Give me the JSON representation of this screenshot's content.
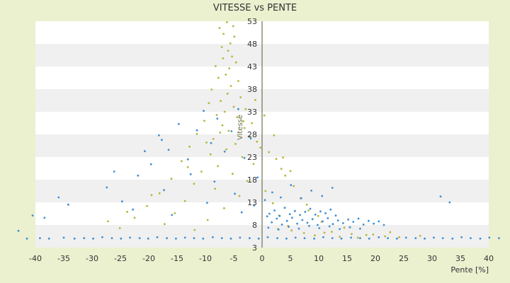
{
  "chart_data": {
    "type": "scatter",
    "title": "VITESSE vs PENTE",
    "xlabel": "Pente [%]",
    "ylabel": "Vitesse",
    "xlim": [
      -40,
      40
    ],
    "ylim": [
      3,
      53
    ],
    "x_ticks": [
      "-40",
      "-35",
      "-30",
      "-25",
      "-20",
      "-15",
      "-10",
      "-5",
      "0",
      "5",
      "10",
      "15",
      "20",
      "25",
      "30",
      "35",
      "40"
    ],
    "y_ticks": [
      "3",
      "8",
      "13",
      "18",
      "23",
      "28",
      "33",
      "38",
      "43",
      "48",
      "53"
    ],
    "grid": "horizontal bands",
    "legend": "none",
    "colors": {
      "series_blue": "#3d8fd6",
      "series_yellow": "#b8b43a",
      "background": "#ebf0cf",
      "band_light": "#ffffff",
      "band_dark": "#f0f0f0",
      "axis": "#555533"
    },
    "series": [
      {
        "color": "#b8b43a",
        "points": [
          [
            -6.2,
            52.8
          ],
          [
            -5.1,
            51.9
          ],
          [
            -7.5,
            51.5
          ],
          [
            -6.8,
            50.2
          ],
          [
            -4.9,
            49.6
          ],
          [
            -5.6,
            48.1
          ],
          [
            -7.1,
            47.3
          ],
          [
            -6.0,
            46.5
          ],
          [
            -5.3,
            45.2
          ],
          [
            -6.9,
            44.8
          ],
          [
            -4.6,
            43.9
          ],
          [
            -8.2,
            43.1
          ],
          [
            -5.8,
            42.6
          ],
          [
            -6.4,
            41.2
          ],
          [
            -7.7,
            40.5
          ],
          [
            -4.2,
            39.8
          ],
          [
            -5.5,
            38.7
          ],
          [
            -8.9,
            37.9
          ],
          [
            -6.1,
            37.0
          ],
          [
            -3.8,
            36.2
          ],
          [
            -7.3,
            35.4
          ],
          [
            -9.4,
            34.9
          ],
          [
            -5.0,
            34.1
          ],
          [
            -2.9,
            33.6
          ],
          [
            -6.6,
            33.0
          ],
          [
            -8.0,
            32.3
          ],
          [
            -4.4,
            31.8
          ],
          [
            -10.2,
            31.0
          ],
          [
            -1.8,
            30.5
          ],
          [
            -7.0,
            30.0
          ],
          [
            -3.1,
            29.4
          ],
          [
            -5.9,
            28.8
          ],
          [
            -11.5,
            28.1
          ],
          [
            -2.2,
            27.5
          ],
          [
            -8.6,
            27.0
          ],
          [
            -0.9,
            26.4
          ],
          [
            -4.7,
            25.9
          ],
          [
            -12.8,
            25.3
          ],
          [
            -6.3,
            24.7
          ],
          [
            1.2,
            24.1
          ],
          [
            -9.1,
            23.6
          ],
          [
            -3.5,
            23.0
          ],
          [
            2.5,
            22.6
          ],
          [
            -14.2,
            22.1
          ],
          [
            -1.5,
            21.5
          ],
          [
            -7.8,
            21.0
          ],
          [
            3.4,
            20.4
          ],
          [
            -10.7,
            19.8
          ],
          [
            -5.2,
            19.3
          ],
          [
            4.1,
            18.9
          ],
          [
            -16.0,
            18.2
          ],
          [
            -2.6,
            17.7
          ],
          [
            -12.0,
            17.1
          ],
          [
            5.6,
            16.6
          ],
          [
            -8.3,
            16.0
          ],
          [
            0.6,
            15.5
          ],
          [
            -18.1,
            15.0
          ],
          [
            -4.0,
            14.4
          ],
          [
            6.8,
            13.9
          ],
          [
            -13.6,
            13.3
          ],
          [
            1.9,
            12.8
          ],
          [
            -20.3,
            12.2
          ],
          [
            -6.7,
            11.7
          ],
          [
            8.2,
            11.2
          ],
          [
            -15.4,
            10.6
          ],
          [
            3.0,
            10.1
          ],
          [
            -22.5,
            9.6
          ],
          [
            -9.6,
            9.1
          ],
          [
            10.5,
            8.7
          ],
          [
            -17.2,
            8.2
          ],
          [
            4.6,
            7.8
          ],
          [
            -25.1,
            7.3
          ],
          [
            -11.9,
            6.9
          ],
          [
            12.3,
            6.5
          ],
          [
            7.4,
            6.2
          ],
          [
            15.8,
            6.0
          ],
          [
            18.4,
            5.8
          ],
          [
            21.7,
            5.5
          ],
          [
            24.2,
            5.3
          ],
          [
            9.3,
            5.7
          ],
          [
            13.7,
            5.4
          ],
          [
            16.9,
            5.2
          ],
          [
            2.8,
            7.1
          ],
          [
            5.2,
            6.8
          ],
          [
            11.0,
            6.3
          ],
          [
            19.6,
            5.9
          ],
          [
            -1.2,
            35.6
          ],
          [
            0.4,
            32.2
          ],
          [
            -3.3,
            30.9
          ],
          [
            -7.4,
            28.4
          ],
          [
            2.1,
            27.8
          ],
          [
            -9.8,
            26.2
          ],
          [
            -0.3,
            25.1
          ],
          [
            3.7,
            22.9
          ],
          [
            -13.1,
            20.8
          ],
          [
            5.0,
            19.9
          ],
          [
            -19.5,
            14.6
          ],
          [
            7.9,
            12.5
          ],
          [
            -23.8,
            10.9
          ],
          [
            9.9,
            10.0
          ],
          [
            -27.2,
            8.8
          ],
          [
            14.5,
            7.4
          ],
          [
            22.6,
            6.4
          ],
          [
            27.9,
            5.6
          ]
        ]
      },
      {
        "color": "#3d8fd6",
        "points": [
          [
            -41.5,
            5.0
          ],
          [
            -39.2,
            5.1
          ],
          [
            -37.6,
            5.0
          ],
          [
            -35.0,
            5.2
          ],
          [
            -33.1,
            5.0
          ],
          [
            -31.4,
            5.1
          ],
          [
            -29.8,
            5.0
          ],
          [
            -28.2,
            5.3
          ],
          [
            -26.5,
            5.1
          ],
          [
            -24.9,
            5.0
          ],
          [
            -23.3,
            5.2
          ],
          [
            -21.6,
            5.1
          ],
          [
            -20.1,
            5.0
          ],
          [
            -18.5,
            5.3
          ],
          [
            -16.8,
            5.1
          ],
          [
            -15.2,
            5.0
          ],
          [
            -13.6,
            5.2
          ],
          [
            -12.0,
            5.1
          ],
          [
            -10.4,
            5.0
          ],
          [
            -8.7,
            5.3
          ],
          [
            -7.1,
            5.1
          ],
          [
            -5.5,
            5.0
          ],
          [
            -3.9,
            5.2
          ],
          [
            -2.2,
            5.1
          ],
          [
            -0.6,
            5.0
          ],
          [
            1.0,
            5.3
          ],
          [
            2.7,
            5.1
          ],
          [
            4.3,
            5.0
          ],
          [
            5.9,
            5.2
          ],
          [
            7.5,
            5.1
          ],
          [
            9.2,
            5.0
          ],
          [
            10.8,
            5.3
          ],
          [
            12.4,
            5.1
          ],
          [
            14.0,
            5.0
          ],
          [
            15.7,
            5.2
          ],
          [
            17.3,
            5.1
          ],
          [
            18.9,
            5.0
          ],
          [
            20.6,
            5.3
          ],
          [
            22.2,
            5.1
          ],
          [
            23.8,
            5.0
          ],
          [
            25.4,
            5.2
          ],
          [
            27.1,
            5.1
          ],
          [
            28.7,
            5.0
          ],
          [
            30.3,
            5.2
          ],
          [
            31.9,
            5.1
          ],
          [
            33.6,
            5.0
          ],
          [
            35.2,
            5.3
          ],
          [
            36.8,
            5.1
          ],
          [
            38.5,
            5.0
          ],
          [
            40.1,
            5.2
          ],
          [
            41.8,
            5.1
          ],
          [
            -38.4,
            9.6
          ],
          [
            -35.9,
            14.1
          ],
          [
            -27.4,
            16.3
          ],
          [
            -24.7,
            13.2
          ],
          [
            -21.9,
            18.9
          ],
          [
            -19.6,
            21.4
          ],
          [
            -18.2,
            27.8
          ],
          [
            -16.5,
            24.6
          ],
          [
            -14.7,
            30.3
          ],
          [
            -13.1,
            22.5
          ],
          [
            -11.5,
            28.9
          ],
          [
            -10.3,
            33.2
          ],
          [
            -9.0,
            26.1
          ],
          [
            -7.9,
            31.5
          ],
          [
            -6.6,
            24.2
          ],
          [
            -5.4,
            28.7
          ],
          [
            -4.2,
            33.6
          ],
          [
            -3.1,
            22.8
          ],
          [
            -2.0,
            27.1
          ],
          [
            -0.8,
            18.5
          ],
          [
            -22.8,
            11.4
          ],
          [
            -17.3,
            15.7
          ],
          [
            -12.6,
            19.2
          ],
          [
            -8.4,
            17.6
          ],
          [
            -4.8,
            14.9
          ],
          [
            -1.4,
            12.3
          ],
          [
            -15.9,
            10.2
          ],
          [
            -9.7,
            12.9
          ],
          [
            -3.6,
            10.8
          ],
          [
            0.9,
            9.9
          ],
          [
            1.7,
            8.6
          ],
          [
            2.6,
            9.4
          ],
          [
            3.5,
            8.1
          ],
          [
            4.4,
            8.9
          ],
          [
            5.3,
            9.6
          ],
          [
            6.2,
            8.3
          ],
          [
            7.1,
            9.1
          ],
          [
            8.0,
            8.5
          ],
          [
            8.9,
            9.3
          ],
          [
            9.8,
            8.0
          ],
          [
            10.7,
            8.8
          ],
          [
            11.6,
            9.5
          ],
          [
            12.5,
            8.2
          ],
          [
            13.4,
            9.0
          ],
          [
            14.3,
            8.4
          ],
          [
            15.2,
            9.2
          ],
          [
            16.1,
            8.7
          ],
          [
            17.0,
            9.4
          ],
          [
            17.9,
            8.1
          ],
          [
            18.8,
            8.9
          ],
          [
            19.7,
            8.3
          ],
          [
            20.6,
            8.8
          ],
          [
            21.5,
            8.0
          ],
          [
            1.3,
            10.5
          ],
          [
            2.2,
            11.2
          ],
          [
            3.1,
            10.0
          ],
          [
            4.0,
            11.8
          ],
          [
            4.9,
            10.4
          ],
          [
            5.8,
            11.1
          ],
          [
            6.7,
            10.2
          ],
          [
            7.6,
            10.9
          ],
          [
            8.5,
            11.6
          ],
          [
            9.4,
            10.3
          ],
          [
            10.3,
            11.0
          ],
          [
            11.2,
            10.6
          ],
          [
            12.1,
            11.4
          ],
          [
            13.0,
            10.1
          ],
          [
            1.1,
            7.4
          ],
          [
            2.9,
            7.0
          ],
          [
            4.7,
            7.6
          ],
          [
            6.5,
            7.2
          ],
          [
            8.3,
            7.8
          ],
          [
            10.1,
            7.3
          ],
          [
            11.9,
            7.7
          ],
          [
            13.7,
            7.1
          ],
          [
            15.5,
            7.5
          ],
          [
            17.3,
            7.2
          ],
          [
            0.5,
            13.5
          ],
          [
            1.8,
            15.2
          ],
          [
            3.3,
            14.1
          ],
          [
            5.1,
            16.8
          ],
          [
            6.9,
            13.9
          ],
          [
            8.7,
            15.6
          ],
          [
            10.6,
            14.4
          ],
          [
            12.4,
            16.2
          ],
          [
            31.5,
            14.3
          ],
          [
            33.1,
            13.0
          ],
          [
            -40.5,
            10.1
          ],
          [
            -43.0,
            6.7
          ],
          [
            -34.2,
            12.5
          ],
          [
            -26.1,
            19.8
          ],
          [
            -20.7,
            24.3
          ],
          [
            -17.7,
            26.8
          ]
        ]
      }
    ]
  }
}
